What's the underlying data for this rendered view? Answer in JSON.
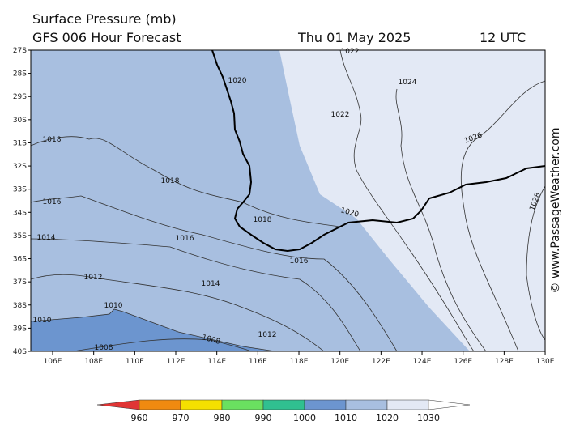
{
  "header": {
    "title": "Surface Pressure (mb)",
    "subtitle": "GFS 006 Hour Forecast",
    "date": "Thu 01 May 2025",
    "time": "12 UTC"
  },
  "latitudes": [
    "27S",
    "28S",
    "29S",
    "30S",
    "31S",
    "32S",
    "33S",
    "34S",
    "35S",
    "36S",
    "37S",
    "38S",
    "39S",
    "40S"
  ],
  "longitudes": [
    "106E",
    "108E",
    "110E",
    "112E",
    "114E",
    "116E",
    "118E",
    "120E",
    "122E",
    "124E",
    "126E",
    "128E",
    "130E"
  ],
  "isobar_labels": [
    "1022",
    "1020",
    "1024",
    "1022",
    "1018",
    "1026",
    "1018",
    "1016",
    "1028",
    "1020",
    "1018",
    "1014",
    "1016",
    "1016",
    "1012",
    "1014",
    "1010",
    "1010",
    "1012",
    "1008",
    "1008"
  ],
  "legend": [
    "960",
    "970",
    "980",
    "990",
    "1000",
    "1010",
    "1020",
    "1030"
  ],
  "watermark": "© www.PassageWeather.com"
}
